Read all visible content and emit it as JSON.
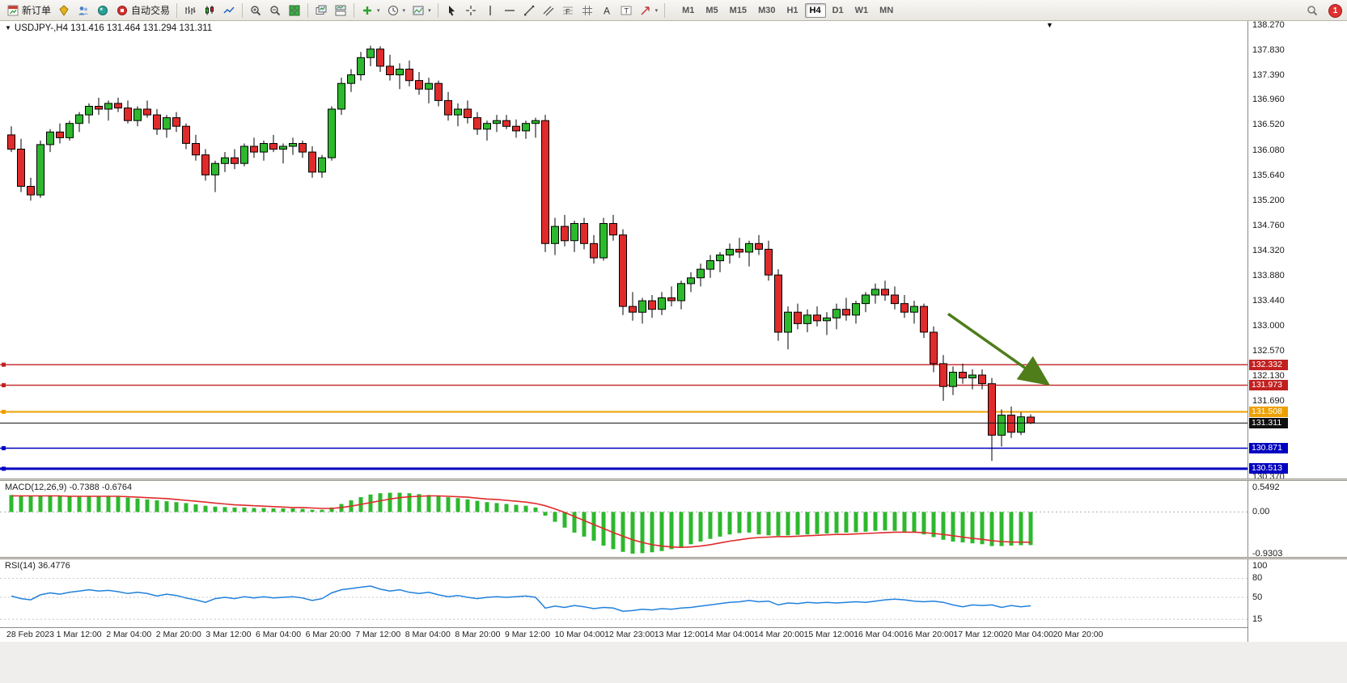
{
  "icons": {
    "dropdown_small": "▾",
    "collapse_triangle": "▼"
  },
  "toolbar": {
    "notification_count": "1",
    "timeframes": [
      "M1",
      "M5",
      "M15",
      "M30",
      "H1",
      "H4",
      "D1",
      "W1",
      "MN"
    ],
    "active_timeframe": "H4",
    "items": [
      {
        "name": "new-order-button",
        "icon": "new-order",
        "label": "新订单"
      },
      {
        "name": "market-watch-button",
        "icon": "market-watch"
      },
      {
        "name": "data-window-button",
        "icon": "data-window"
      },
      {
        "name": "navigator-button",
        "icon": "navigator"
      },
      {
        "name": "autotrading-button",
        "icon": "autotrade",
        "label": "自动交易"
      },
      {
        "sep": true
      },
      {
        "name": "bar-chart-button",
        "icon": "bars"
      },
      {
        "name": "candlestick-chart-button",
        "icon": "candles"
      },
      {
        "name": "line-chart-button",
        "icon": "line"
      },
      {
        "sep": true
      },
      {
        "name": "zoom-in-button",
        "icon": "zoom-in"
      },
      {
        "name": "zoom-out-button",
        "icon": "zoom-out"
      },
      {
        "name": "tile-windows-button",
        "icon": "tile"
      },
      {
        "sep": true
      },
      {
        "name": "cascade-windows-button",
        "icon": "cascade"
      },
      {
        "name": "arrange-windows-button",
        "icon": "arrange"
      },
      {
        "sep": true
      },
      {
        "name": "indicators-button",
        "icon": "indicators",
        "dropdown": true
      },
      {
        "name": "periods-button",
        "icon": "clock",
        "dropdown": true
      },
      {
        "name": "templates-button",
        "icon": "template",
        "dropdown": true
      },
      {
        "sep": true
      },
      {
        "name": "cursor-button",
        "icon": "cursor"
      },
      {
        "name": "crosshair-button",
        "icon": "crosshair"
      },
      {
        "name": "vertical-line-button",
        "icon": "vline"
      },
      {
        "name": "horizontal-line-button",
        "icon": "hline"
      },
      {
        "name": "trendline-button",
        "icon": "trendline"
      },
      {
        "name": "channel-button",
        "icon": "channel"
      },
      {
        "name": "fibonacci-button",
        "icon": "fibo"
      },
      {
        "name": "shapes-button",
        "icon": "shapes"
      },
      {
        "name": "text-button",
        "icon": "textA"
      },
      {
        "name": "label-button",
        "icon": "label"
      },
      {
        "name": "arrows-button",
        "icon": "arrows",
        "dropdown": true
      },
      {
        "sep": true
      }
    ]
  },
  "chart": {
    "title": "USDJPY-,H4 131.416 131.464 131.294 131.311"
  },
  "chart_data": {
    "type": "candlestick",
    "symbol": "USDJPY-",
    "timeframe": "H4",
    "current_bar": {
      "open": 131.416,
      "high": 131.464,
      "low": 131.294,
      "close": 131.311
    },
    "y_axis": {
      "max": 138.27,
      "min": 130.37,
      "labels": [
        138.27,
        137.83,
        137.39,
        136.96,
        136.52,
        136.08,
        135.64,
        135.2,
        134.76,
        134.32,
        133.88,
        133.44,
        133.0,
        132.57,
        132.13,
        131.69,
        131.25,
        130.81,
        130.37
      ]
    },
    "x_axis": {
      "labels": [
        "28 Feb 2023",
        "1 Mar 12:00",
        "2 Mar 04:00",
        "2 Mar 20:00",
        "3 Mar 12:00",
        "6 Mar 04:00",
        "6 Mar 20:00",
        "7 Mar 12:00",
        "8 Mar 04:00",
        "8 Mar 20:00",
        "9 Mar 12:00",
        "10 Mar 04:00",
        "12 Mar 23:00",
        "13 Mar 12:00",
        "14 Mar 04:00",
        "14 Mar 20:00",
        "15 Mar 12:00",
        "16 Mar 04:00",
        "16 Mar 20:00",
        "17 Mar 12:00",
        "20 Mar 04:00",
        "20 Mar 20:00"
      ]
    },
    "hlines": [
      {
        "price": 132.332,
        "color": "#c22020",
        "width": 1.4
      },
      {
        "price": 131.973,
        "color": "#c22020",
        "width": 1.4
      },
      {
        "price": 131.508,
        "color": "#eea000",
        "width": 2
      },
      {
        "price": 130.871,
        "color": "#0000c0",
        "width": 1.6
      },
      {
        "price": 130.513,
        "color": "#0000c0",
        "width": 3
      }
    ],
    "current_price": {
      "value": 131.311,
      "color": "#101010"
    },
    "arrow": {
      "from_index": 96.5,
      "from_price": 133.22,
      "to_index": 106.3,
      "to_price": 132.05,
      "color": "#4e7d1a"
    },
    "candles": [
      [
        136.35,
        136.5,
        136.05,
        136.1
      ],
      [
        136.1,
        136.28,
        135.35,
        135.45
      ],
      [
        135.45,
        135.6,
        135.2,
        135.3
      ],
      [
        135.3,
        136.25,
        135.25,
        136.18
      ],
      [
        136.18,
        136.45,
        136.05,
        136.4
      ],
      [
        136.4,
        136.55,
        136.2,
        136.3
      ],
      [
        136.3,
        136.6,
        136.25,
        136.55
      ],
      [
        136.55,
        136.75,
        136.4,
        136.7
      ],
      [
        136.7,
        136.9,
        136.55,
        136.85
      ],
      [
        136.85,
        137.0,
        136.7,
        136.8
      ],
      [
        136.8,
        136.95,
        136.6,
        136.9
      ],
      [
        136.9,
        137.0,
        136.75,
        136.82
      ],
      [
        136.82,
        136.95,
        136.55,
        136.6
      ],
      [
        136.6,
        136.85,
        136.5,
        136.8
      ],
      [
        136.8,
        136.95,
        136.65,
        136.7
      ],
      [
        136.7,
        136.8,
        136.35,
        136.45
      ],
      [
        136.45,
        136.7,
        136.3,
        136.65
      ],
      [
        136.65,
        136.75,
        136.4,
        136.5
      ],
      [
        136.5,
        136.55,
        136.1,
        136.2
      ],
      [
        136.2,
        136.35,
        135.9,
        136.0
      ],
      [
        136.0,
        136.1,
        135.55,
        135.65
      ],
      [
        135.65,
        135.9,
        135.35,
        135.85
      ],
      [
        135.85,
        136.05,
        135.7,
        135.95
      ],
      [
        135.95,
        136.1,
        135.75,
        135.85
      ],
      [
        135.85,
        136.2,
        135.8,
        136.15
      ],
      [
        136.15,
        136.3,
        135.95,
        136.05
      ],
      [
        136.05,
        136.25,
        135.9,
        136.2
      ],
      [
        136.2,
        136.35,
        136.05,
        136.1
      ],
      [
        136.1,
        136.2,
        135.85,
        136.15
      ],
      [
        136.15,
        136.3,
        136.0,
        136.2
      ],
      [
        136.2,
        136.25,
        135.95,
        136.05
      ],
      [
        136.05,
        136.15,
        135.6,
        135.7
      ],
      [
        135.7,
        136.0,
        135.6,
        135.95
      ],
      [
        135.95,
        136.85,
        135.9,
        136.8
      ],
      [
        136.8,
        137.35,
        136.7,
        137.25
      ],
      [
        137.25,
        137.5,
        137.1,
        137.4
      ],
      [
        137.4,
        137.8,
        137.3,
        137.7
      ],
      [
        137.7,
        137.91,
        137.55,
        137.85
      ],
      [
        137.85,
        137.9,
        137.45,
        137.55
      ],
      [
        137.55,
        137.75,
        137.3,
        137.4
      ],
      [
        137.4,
        137.6,
        137.15,
        137.5
      ],
      [
        137.5,
        137.65,
        137.2,
        137.3
      ],
      [
        137.3,
        137.45,
        137.05,
        137.15
      ],
      [
        137.15,
        137.35,
        136.9,
        137.25
      ],
      [
        137.25,
        137.3,
        136.85,
        136.95
      ],
      [
        136.95,
        137.1,
        136.6,
        136.7
      ],
      [
        136.7,
        136.9,
        136.5,
        136.8
      ],
      [
        136.8,
        136.95,
        136.55,
        136.65
      ],
      [
        136.65,
        136.75,
        136.35,
        136.45
      ],
      [
        136.45,
        136.6,
        136.25,
        136.55
      ],
      [
        136.55,
        136.7,
        136.4,
        136.6
      ],
      [
        136.6,
        136.7,
        136.45,
        136.5
      ],
      [
        136.5,
        136.62,
        136.3,
        136.42
      ],
      [
        136.42,
        136.6,
        136.28,
        136.55
      ],
      [
        136.55,
        136.65,
        136.3,
        136.6
      ],
      [
        136.6,
        136.7,
        134.3,
        134.45
      ],
      [
        134.45,
        134.9,
        134.25,
        134.75
      ],
      [
        134.75,
        134.95,
        134.4,
        134.5
      ],
      [
        134.5,
        134.85,
        134.3,
        134.8
      ],
      [
        134.8,
        134.9,
        134.35,
        134.45
      ],
      [
        134.45,
        134.6,
        134.1,
        134.2
      ],
      [
        134.2,
        134.9,
        134.15,
        134.8
      ],
      [
        134.8,
        134.95,
        134.5,
        134.6
      ],
      [
        134.6,
        134.7,
        133.2,
        133.35
      ],
      [
        133.35,
        133.6,
        133.1,
        133.25
      ],
      [
        133.25,
        133.5,
        133.05,
        133.45
      ],
      [
        133.45,
        133.55,
        133.15,
        133.3
      ],
      [
        133.3,
        133.6,
        133.2,
        133.5
      ],
      [
        133.5,
        133.7,
        133.35,
        133.45
      ],
      [
        133.45,
        133.8,
        133.3,
        133.75
      ],
      [
        133.75,
        133.95,
        133.6,
        133.85
      ],
      [
        133.85,
        134.1,
        133.7,
        134.0
      ],
      [
        134.0,
        134.25,
        133.85,
        134.15
      ],
      [
        134.15,
        134.3,
        133.95,
        134.25
      ],
      [
        134.25,
        134.45,
        134.1,
        134.35
      ],
      [
        134.35,
        134.55,
        134.2,
        134.3
      ],
      [
        134.3,
        134.5,
        134.05,
        134.45
      ],
      [
        134.45,
        134.6,
        134.25,
        134.35
      ],
      [
        134.35,
        134.5,
        133.8,
        133.9
      ],
      [
        133.9,
        134.0,
        132.75,
        132.9
      ],
      [
        132.9,
        133.35,
        132.6,
        133.25
      ],
      [
        133.25,
        133.4,
        132.95,
        133.05
      ],
      [
        133.05,
        133.3,
        132.9,
        133.2
      ],
      [
        133.2,
        133.35,
        133.0,
        133.1
      ],
      [
        133.1,
        133.25,
        132.85,
        133.15
      ],
      [
        133.15,
        133.4,
        132.95,
        133.3
      ],
      [
        133.3,
        133.5,
        133.1,
        133.2
      ],
      [
        133.2,
        133.45,
        133.05,
        133.4
      ],
      [
        133.4,
        133.6,
        133.25,
        133.55
      ],
      [
        133.55,
        133.75,
        133.4,
        133.65
      ],
      [
        133.65,
        133.8,
        133.45,
        133.55
      ],
      [
        133.55,
        133.7,
        133.3,
        133.4
      ],
      [
        133.4,
        133.55,
        133.15,
        133.25
      ],
      [
        133.25,
        133.45,
        133.05,
        133.35
      ],
      [
        133.35,
        133.4,
        132.8,
        132.9
      ],
      [
        132.9,
        133.0,
        132.2,
        132.35
      ],
      [
        132.35,
        132.5,
        131.7,
        131.95
      ],
      [
        131.95,
        132.3,
        131.8,
        132.2
      ],
      [
        132.2,
        132.35,
        132.0,
        132.1
      ],
      [
        132.1,
        132.25,
        131.9,
        132.15
      ],
      [
        132.15,
        132.25,
        131.9,
        132.0
      ],
      [
        132.0,
        132.1,
        130.65,
        131.1
      ],
      [
        131.1,
        131.55,
        130.9,
        131.45
      ],
      [
        131.45,
        131.6,
        131.05,
        131.15
      ],
      [
        131.15,
        131.5,
        131.1,
        131.42
      ],
      [
        131.416,
        131.464,
        131.294,
        131.311
      ]
    ],
    "indicators": {
      "macd": {
        "label": "MACD(12,26,9) -0.7388 -0.6764",
        "name": "MACD",
        "params": [
          12,
          26,
          9
        ],
        "value": -0.7388,
        "signal_value": -0.6764,
        "max": 0.5492,
        "min": -0.9303,
        "axis_labels": [
          0.5492,
          0.0,
          -0.9303
        ],
        "histogram": [
          0.38,
          0.36,
          0.35,
          0.36,
          0.37,
          0.36,
          0.35,
          0.34,
          0.35,
          0.36,
          0.35,
          0.34,
          0.32,
          0.3,
          0.28,
          0.26,
          0.24,
          0.22,
          0.2,
          0.17,
          0.14,
          0.12,
          0.11,
          0.1,
          0.1,
          0.09,
          0.09,
          0.08,
          0.08,
          0.08,
          0.07,
          0.05,
          0.05,
          0.1,
          0.18,
          0.26,
          0.33,
          0.39,
          0.42,
          0.43,
          0.43,
          0.42,
          0.4,
          0.38,
          0.36,
          0.33,
          0.31,
          0.28,
          0.25,
          0.22,
          0.2,
          0.18,
          0.16,
          0.14,
          0.1,
          -0.08,
          -0.22,
          -0.35,
          -0.46,
          -0.55,
          -0.64,
          -0.75,
          -0.83,
          -0.89,
          -0.93,
          -0.92,
          -0.9,
          -0.87,
          -0.83,
          -0.78,
          -0.72,
          -0.66,
          -0.6,
          -0.55,
          -0.5,
          -0.47,
          -0.46,
          -0.5,
          -0.52,
          -0.53,
          -0.52,
          -0.51,
          -0.5,
          -0.49,
          -0.48,
          -0.47,
          -0.46,
          -0.45,
          -0.44,
          -0.42,
          -0.41,
          -0.42,
          -0.44,
          -0.46,
          -0.5,
          -0.56,
          -0.62,
          -0.66,
          -0.68,
          -0.7,
          -0.72,
          -0.76,
          -0.76,
          -0.75,
          -0.74,
          -0.7388
        ],
        "signal": [
          0.36,
          0.36,
          0.36,
          0.36,
          0.36,
          0.36,
          0.35,
          0.35,
          0.35,
          0.35,
          0.35,
          0.35,
          0.34,
          0.33,
          0.32,
          0.31,
          0.3,
          0.28,
          0.26,
          0.24,
          0.22,
          0.2,
          0.18,
          0.16,
          0.15,
          0.14,
          0.13,
          0.12,
          0.11,
          0.1,
          0.1,
          0.09,
          0.08,
          0.08,
          0.1,
          0.13,
          0.17,
          0.21,
          0.25,
          0.29,
          0.32,
          0.34,
          0.35,
          0.36,
          0.36,
          0.35,
          0.34,
          0.33,
          0.31,
          0.29,
          0.28,
          0.26,
          0.24,
          0.22,
          0.19,
          0.14,
          0.07,
          -0.01,
          -0.1,
          -0.19,
          -0.28,
          -0.37,
          -0.46,
          -0.54,
          -0.62,
          -0.68,
          -0.73,
          -0.76,
          -0.78,
          -0.79,
          -0.78,
          -0.76,
          -0.73,
          -0.69,
          -0.65,
          -0.62,
          -0.59,
          -0.57,
          -0.56,
          -0.55,
          -0.55,
          -0.54,
          -0.53,
          -0.52,
          -0.51,
          -0.5,
          -0.5,
          -0.49,
          -0.48,
          -0.47,
          -0.46,
          -0.45,
          -0.45,
          -0.45,
          -0.46,
          -0.48,
          -0.5,
          -0.53,
          -0.56,
          -0.59,
          -0.61,
          -0.64,
          -0.66,
          -0.67,
          -0.673,
          -0.6764
        ]
      },
      "rsi": {
        "label": "RSI(14) 36.4776",
        "name": "RSI",
        "period": 14,
        "value": 36.4776,
        "axis_labels": [
          100,
          80,
          50,
          15
        ],
        "level_lines": [
          80,
          50,
          15
        ],
        "values": [
          52,
          48,
          46,
          54,
          57,
          55,
          58,
          60,
          62,
          60,
          61,
          59,
          56,
          58,
          56,
          52,
          55,
          53,
          49,
          46,
          42,
          48,
          50,
          48,
          51,
          49,
          51,
          49,
          50,
          51,
          49,
          45,
          48,
          57,
          62,
          64,
          66,
          68,
          63,
          60,
          62,
          58,
          56,
          58,
          54,
          51,
          53,
          50,
          48,
          50,
          51,
          50,
          51,
          52,
          50,
          33,
          36,
          34,
          37,
          35,
          32,
          34,
          33,
          28,
          29,
          31,
          30,
          32,
          31,
          33,
          34,
          36,
          38,
          40,
          42,
          43,
          45,
          43,
          44,
          38,
          41,
          40,
          42,
          41,
          42,
          41,
          42,
          43,
          42,
          44,
          46,
          47,
          46,
          44,
          43,
          44,
          42,
          38,
          35,
          38,
          37,
          38,
          34,
          37,
          35,
          36.4776
        ]
      }
    }
  }
}
